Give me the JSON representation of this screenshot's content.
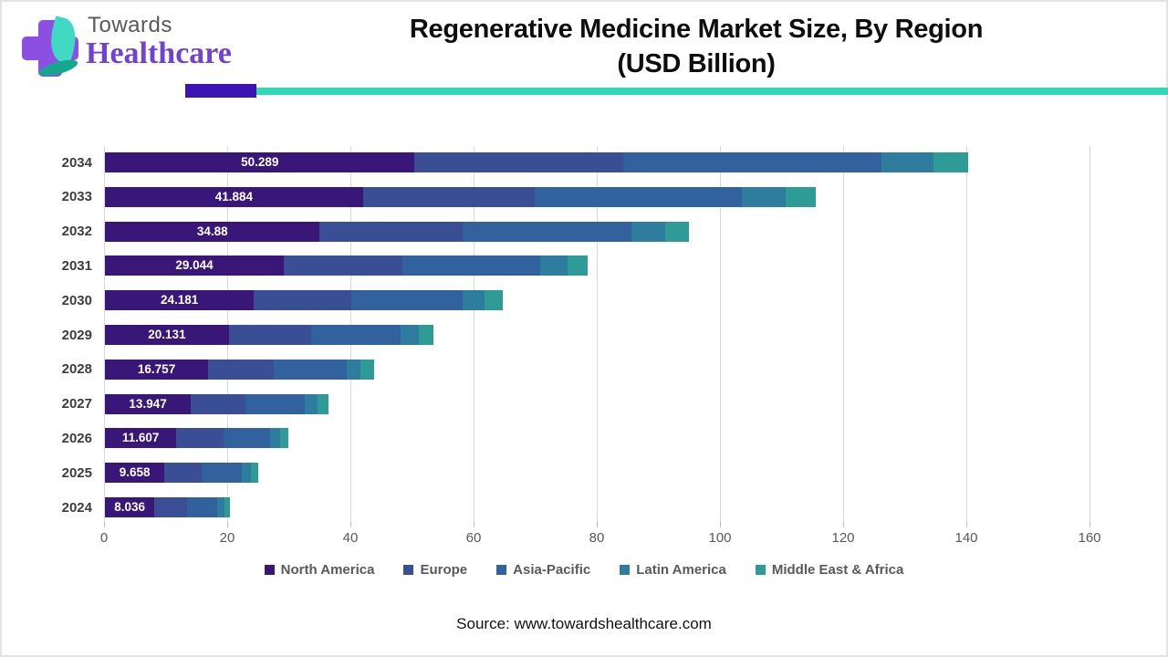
{
  "header": {
    "logo_line1": "Towards",
    "logo_line2": "Healthcare",
    "title_line1": "Regenerative Medicine Market Size, By Region",
    "title_line2": "(USD Billion)"
  },
  "chart_data": {
    "type": "bar",
    "orientation": "horizontal",
    "stacked": true,
    "grid": true,
    "legend_position": "bottom",
    "xlim": [
      0,
      160
    ],
    "x_ticks": [
      "0",
      "20",
      "40",
      "60",
      "80",
      "100",
      "120",
      "140",
      "160"
    ],
    "categories": [
      "2034",
      "2033",
      "2032",
      "2031",
      "2030",
      "2029",
      "2028",
      "2027",
      "2026",
      "2025",
      "2024"
    ],
    "series": [
      {
        "name": "North America",
        "color": "#381778",
        "values": [
          50.289,
          41.884,
          34.88,
          29.044,
          24.181,
          20.131,
          16.757,
          13.947,
          11.607,
          9.658,
          8.036
        ],
        "labels": [
          "50.289",
          "41.884",
          "34.88",
          "29.044",
          "24.181",
          "20.131",
          "16.757",
          "13.947",
          "11.607",
          "9.658",
          "8.036"
        ]
      },
      {
        "name": "Europe",
        "color": "#3a4e95",
        "values": [
          33.8,
          27.9,
          23.2,
          19.3,
          15.8,
          13.4,
          10.7,
          8.9,
          7.6,
          6.1,
          5.3
        ]
      },
      {
        "name": "Asia-Pacific",
        "color": "#31629e",
        "values": [
          42.0,
          33.7,
          27.4,
          22.3,
          18.1,
          14.5,
          11.8,
          9.6,
          7.6,
          6.5,
          4.9
        ]
      },
      {
        "name": "Latin America",
        "color": "#2e7d9e",
        "values": [
          8.4,
          7.0,
          5.5,
          4.4,
          3.6,
          2.9,
          2.3,
          2.1,
          1.7,
          1.5,
          1.2
        ]
      },
      {
        "name": "Middle East & Africa",
        "color": "#2f9b96",
        "values": [
          5.6,
          5.0,
          3.8,
          3.3,
          2.9,
          2.4,
          2.1,
          1.7,
          1.3,
          1.1,
          0.9
        ]
      }
    ]
  },
  "colors": {
    "separator_purple": "#3d13b5",
    "separator_teal": "#2ed9b3",
    "logo_purple": "#7141d1",
    "gridline": "#d9d9d9",
    "axis_text": "#595959",
    "year_text": "#3d3d3d"
  },
  "source": "Source: www.towardshealthcare.com"
}
